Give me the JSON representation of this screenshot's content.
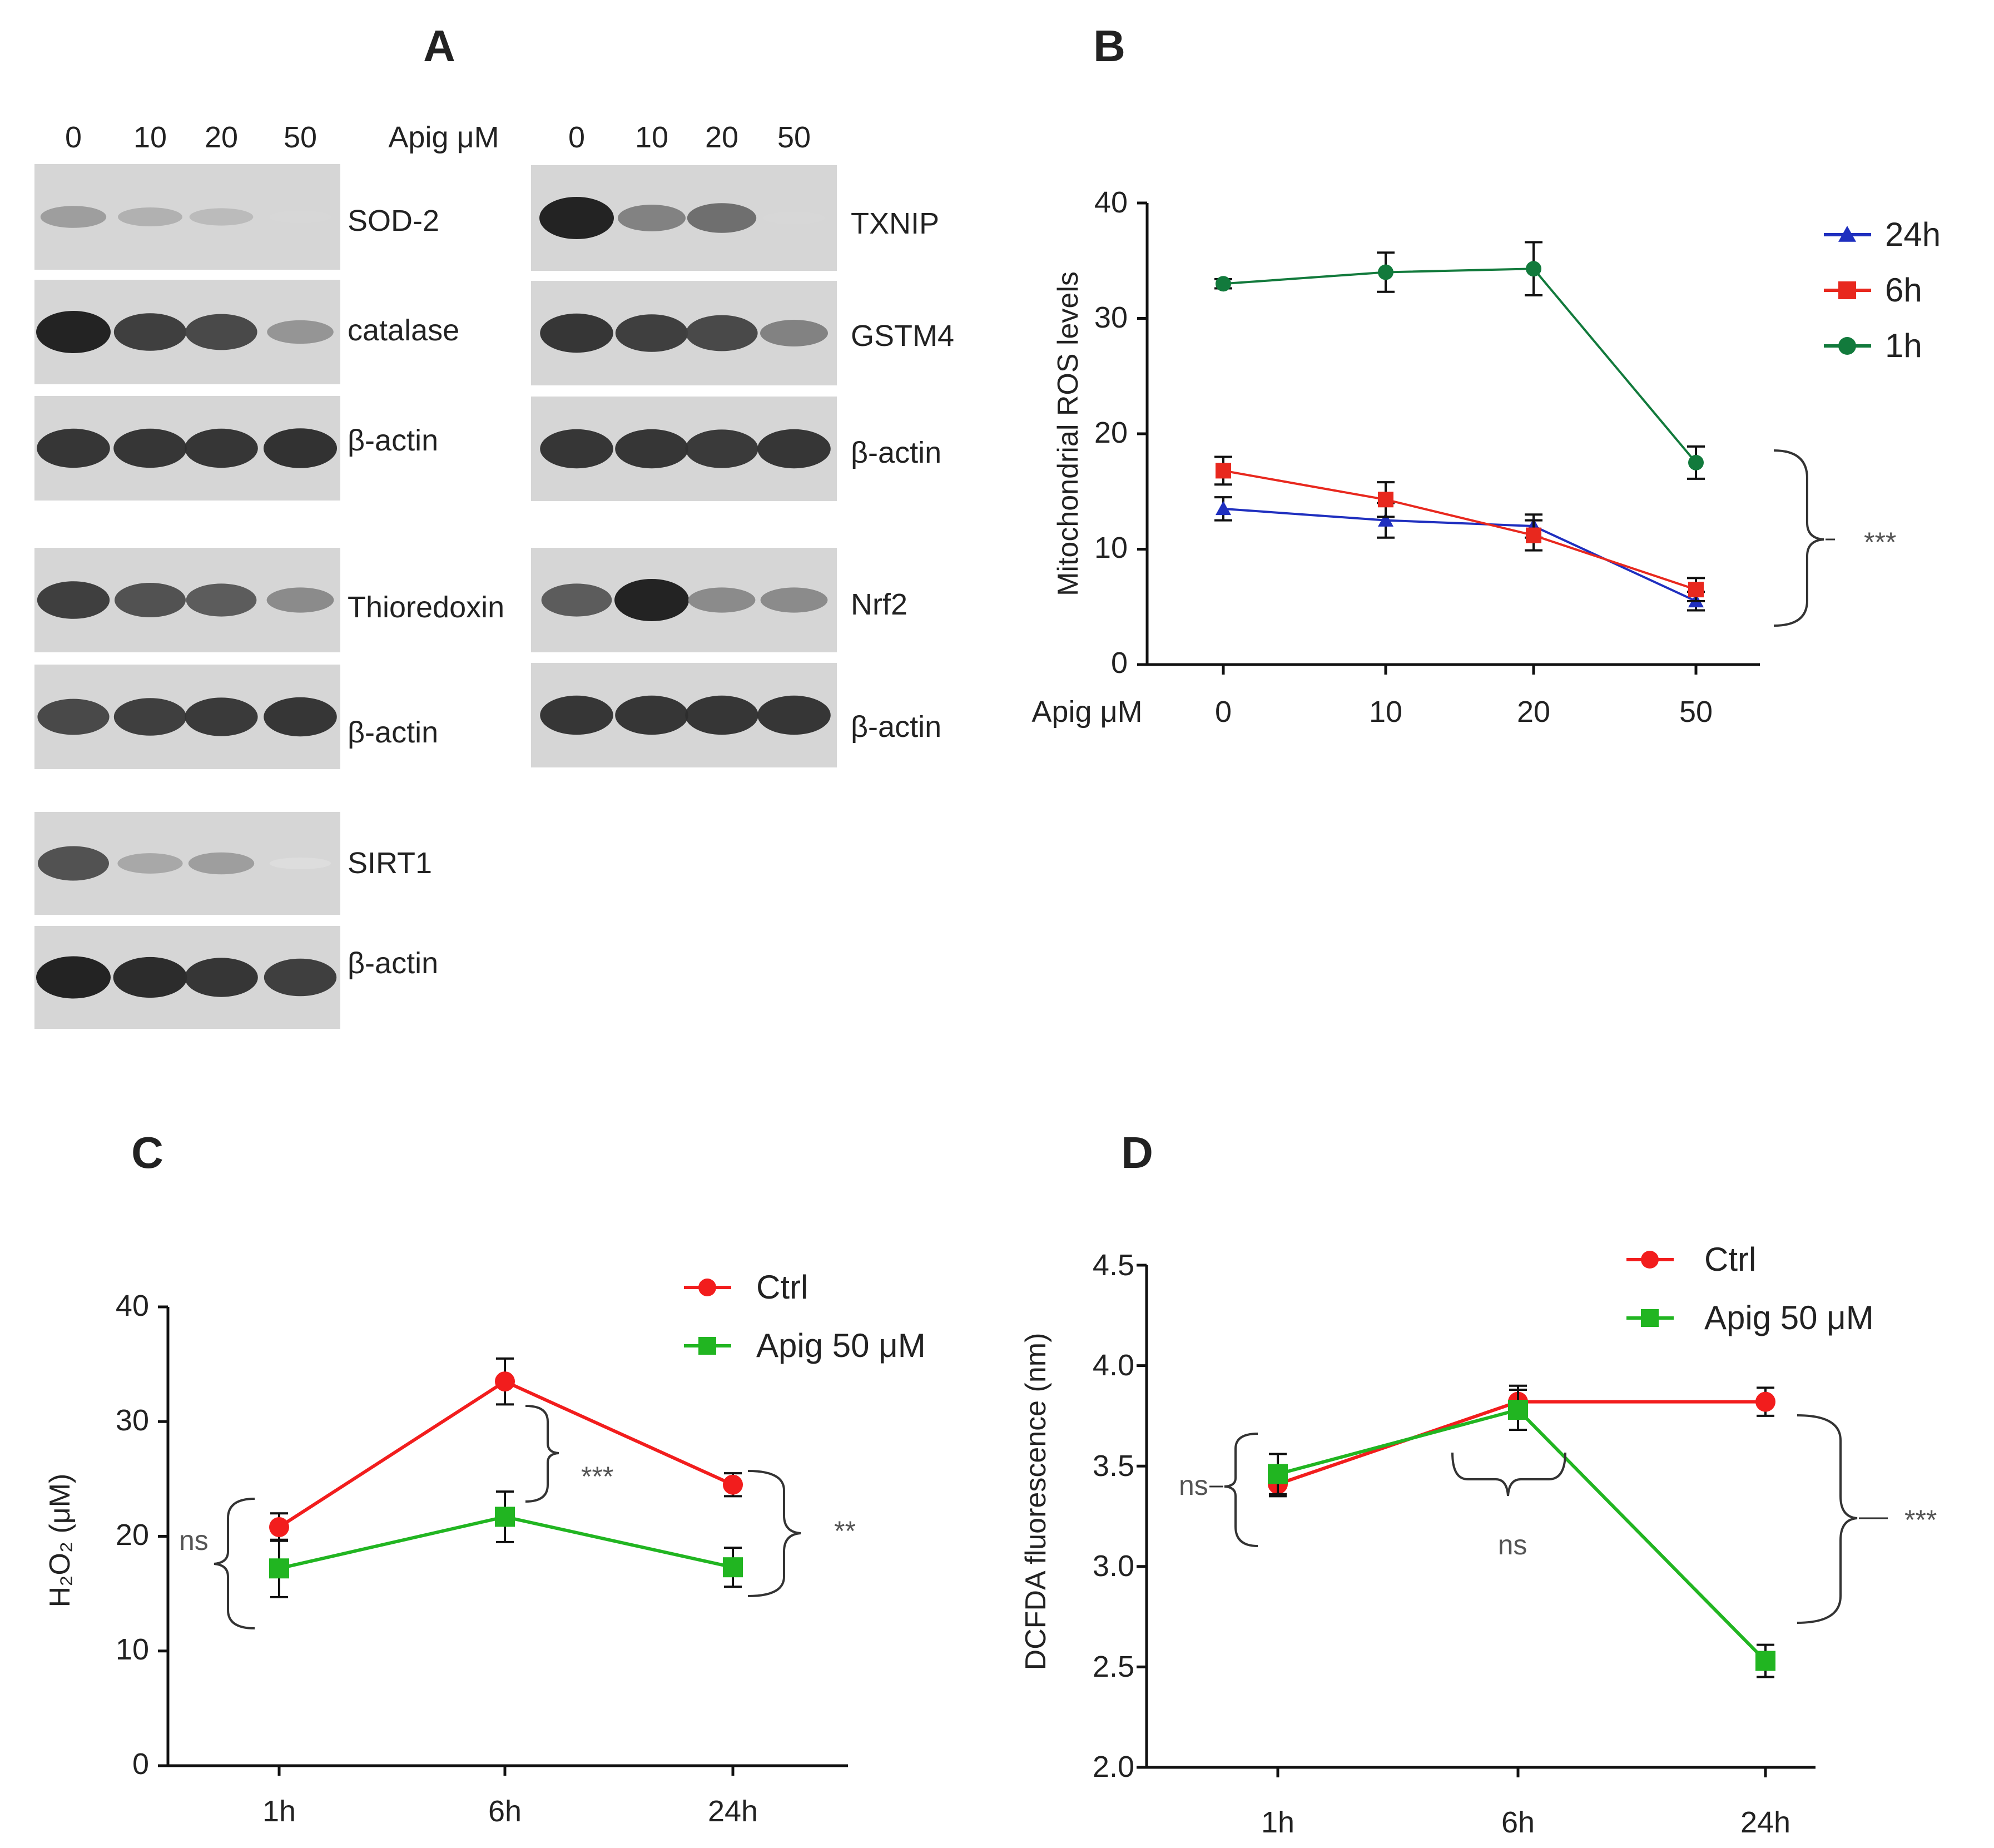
{
  "panel_labels": {
    "a": "A",
    "b": "B",
    "c": "C",
    "d": "D"
  },
  "western_blot": {
    "lane_labels": [
      "0",
      "10",
      "20",
      "50"
    ],
    "dose_label": "Apig μM",
    "blots": [
      {
        "protein": "SOD-2",
        "intensity": [
          0.35,
          0.25,
          0.2,
          0.05
        ]
      },
      {
        "protein": "catalase",
        "intensity": [
          1.0,
          0.85,
          0.8,
          0.4
        ]
      },
      {
        "protein": "β-actin",
        "intensity": [
          0.9,
          0.9,
          0.9,
          0.92
        ]
      },
      {
        "protein": "TXNIP",
        "intensity": [
          1.0,
          0.5,
          0.6,
          0.05
        ]
      },
      {
        "protein": "GSTM4",
        "intensity": [
          0.9,
          0.85,
          0.8,
          0.5
        ]
      },
      {
        "protein": "β-actin",
        "intensity": [
          0.9,
          0.9,
          0.88,
          0.9
        ]
      },
      {
        "protein": "Thioredoxin",
        "intensity": [
          0.85,
          0.75,
          0.7,
          0.45
        ]
      },
      {
        "protein": "β-actin",
        "intensity": [
          0.8,
          0.85,
          0.88,
          0.9
        ]
      },
      {
        "protein": "Nrf2",
        "intensity": [
          0.7,
          1.0,
          0.45,
          0.45
        ]
      },
      {
        "protein": "β-actin",
        "intensity": [
          0.9,
          0.9,
          0.9,
          0.9
        ]
      },
      {
        "protein": "SIRT1",
        "intensity": [
          0.75,
          0.3,
          0.35,
          0.02
        ]
      },
      {
        "protein": "β-actin",
        "intensity": [
          1.0,
          0.95,
          0.9,
          0.85
        ]
      }
    ]
  },
  "chart_data": [
    {
      "id": "B",
      "type": "line",
      "title": "",
      "xlabel": "Apig μM",
      "ylabel": "Mitochondrial ROS levels",
      "categories": [
        "0",
        "10",
        "20",
        "50"
      ],
      "ylim": [
        0,
        40
      ],
      "yticks": [
        "0",
        "10",
        "20",
        "30",
        "40"
      ],
      "series": [
        {
          "name": "24h",
          "color": "#1f2fbf",
          "marker": "triangle",
          "values": [
            13.5,
            12.5,
            12,
            5.5
          ],
          "errors": [
            1,
            1.5,
            1,
            0.8
          ]
        },
        {
          "name": "6h",
          "color": "#e8281e",
          "marker": "square",
          "values": [
            16.8,
            14.3,
            11.2,
            6.5
          ],
          "errors": [
            1.2,
            1.5,
            1.3,
            1
          ]
        },
        {
          "name": "1h",
          "color": "#127a3c",
          "marker": "circle",
          "values": [
            33,
            34,
            34.3,
            17.5
          ],
          "errors": [
            0.4,
            1.7,
            2.3,
            1.4
          ]
        }
      ],
      "annotations": [
        {
          "text": "***"
        }
      ]
    },
    {
      "id": "C",
      "type": "line",
      "title": "",
      "xlabel": "",
      "ylabel": "H₂O₂ (μM)",
      "categories": [
        "1h",
        "6h",
        "24h"
      ],
      "ylim": [
        0,
        40
      ],
      "yticks": [
        "0",
        "10",
        "20",
        "30",
        "40"
      ],
      "series": [
        {
          "name": "Ctrl",
          "color": "#f21d1d",
          "marker": "circle",
          "values": [
            20.8,
            33.5,
            24.5
          ],
          "errors": [
            1.2,
            2,
            1
          ]
        },
        {
          "name": "Apig 50 μM",
          "color": "#21b521",
          "marker": "square",
          "values": [
            17.2,
            21.7,
            17.3
          ],
          "errors": [
            2.5,
            2.2,
            1.7
          ]
        }
      ],
      "annotations": [
        {
          "text": "ns"
        },
        {
          "text": "***"
        },
        {
          "text": "**"
        }
      ]
    },
    {
      "id": "D",
      "type": "line",
      "title": "",
      "xlabel": "",
      "ylabel": "DCFDA fluorescence (nm)",
      "categories": [
        "1h",
        "6h",
        "24h"
      ],
      "ylim": [
        2.0,
        4.5
      ],
      "yticks": [
        "2.0",
        "2.5",
        "3.0",
        "3.5",
        "4.0",
        "4.5"
      ],
      "series": [
        {
          "name": "Ctrl",
          "color": "#f21d1d",
          "marker": "circle",
          "values": [
            3.41,
            3.82,
            3.82
          ],
          "errors": [
            0.06,
            0.08,
            0.07
          ]
        },
        {
          "name": "Apig 50 μM",
          "color": "#21b521",
          "marker": "square",
          "values": [
            3.46,
            3.78,
            2.53
          ],
          "errors": [
            0.1,
            0.1,
            0.08
          ]
        }
      ],
      "annotations": [
        {
          "text": "ns"
        },
        {
          "text": "ns"
        },
        {
          "text": "***"
        }
      ]
    }
  ]
}
